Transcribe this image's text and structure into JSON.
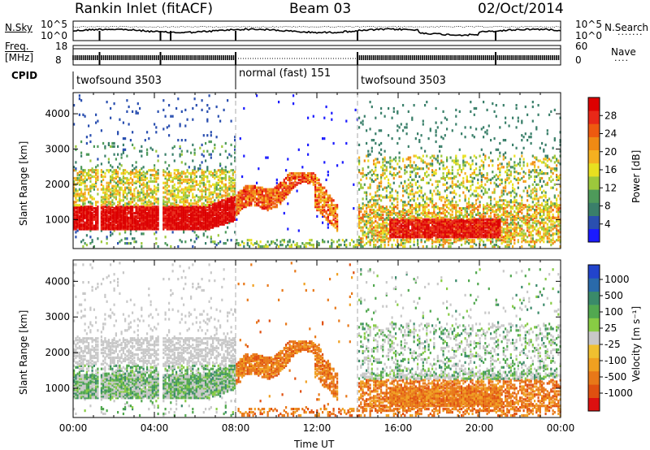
{
  "header": {
    "station": "Rankin Inlet (fitACF)",
    "beam": "Beam 03",
    "date": "02/Oct/2014"
  },
  "noise_panel": {
    "left_label": "N.Sky",
    "right_label": "N.Search",
    "left_ticks": [
      "10^5",
      "10^0"
    ],
    "right_ticks": [
      "10^5",
      "10^0"
    ]
  },
  "freq_panel": {
    "left_label": "Freq.",
    "left_unit": "[MHz]",
    "right_label": "Nave",
    "left_ticks": [
      "18",
      "8"
    ],
    "right_ticks": [
      "60",
      "0"
    ]
  },
  "cpid_panel": {
    "label": "CPID",
    "segments": [
      {
        "name": "twofsound 3503",
        "start_hour": 0,
        "end_hour": 8
      },
      {
        "name": "normal (fast) 151",
        "start_hour": 8,
        "end_hour": 14
      },
      {
        "name": "twofsound 3503",
        "start_hour": 14,
        "end_hour": 24
      }
    ]
  },
  "chart_data": [
    {
      "type": "heatmap",
      "parameter": "Power",
      "ylabel": "Slant Range [km]",
      "ylim": [
        180,
        4600
      ],
      "yticks": [
        1000,
        2000,
        3000,
        4000
      ],
      "colorbar": {
        "label": "Power [dB]",
        "ticks": [
          4,
          8,
          12,
          16,
          20,
          24,
          28
        ],
        "colors": [
          "#1a1aff",
          "#2a4fb0",
          "#3a7f6a",
          "#4e9a5a",
          "#9cc83c",
          "#e8e020",
          "#f5b020",
          "#f08a14",
          "#ee5a10",
          "#e82818",
          "#dd0000"
        ]
      }
    },
    {
      "type": "heatmap",
      "parameter": "Velocity",
      "xlabel": "Time UT",
      "ylabel": "Slant Range [km]",
      "xlim": [
        0,
        24
      ],
      "xticks": [
        "00:00",
        "04:00",
        "08:00",
        "12:00",
        "16:00",
        "20:00",
        "00:00"
      ],
      "ylim": [
        180,
        4600
      ],
      "yticks": [
        1000,
        2000,
        3000,
        4000
      ],
      "colorbar": {
        "label": "Velocity [m s⁻¹]",
        "ticks": [
          1000,
          500,
          100,
          25,
          -25,
          -100,
          -500,
          -1000
        ],
        "colors": [
          "#2244cc",
          "#2a6aaa",
          "#3a8a6a",
          "#52a850",
          "#88cc44",
          "#c8c8c8",
          "#f0c030",
          "#f0a020",
          "#e87818",
          "#e05010",
          "#dd1010"
        ]
      }
    }
  ]
}
